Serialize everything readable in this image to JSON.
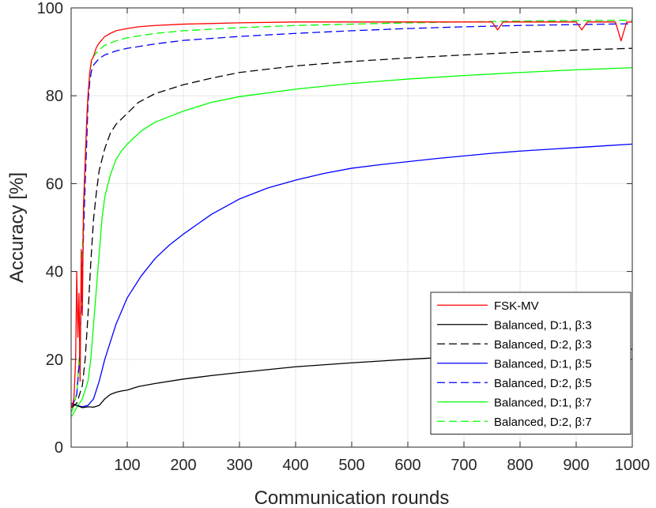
{
  "chart_data": {
    "type": "line",
    "title": "",
    "xlabel": "Communication rounds",
    "ylabel": "Accuracy [%]",
    "xlim": [
      0,
      1000
    ],
    "ylim": [
      0,
      100
    ],
    "xticks": [
      100,
      200,
      300,
      400,
      500,
      600,
      700,
      800,
      900,
      1000
    ],
    "yticks": [
      0,
      20,
      40,
      60,
      80,
      100
    ],
    "grid": true,
    "legend_position": "bottom-right",
    "series": [
      {
        "name": "FSK-MV",
        "color": "#ff0000",
        "dash": "solid",
        "points": [
          [
            1,
            9
          ],
          [
            5,
            11
          ],
          [
            8,
            20
          ],
          [
            10,
            40
          ],
          [
            12,
            25
          ],
          [
            14,
            35
          ],
          [
            16,
            15
          ],
          [
            18,
            45
          ],
          [
            20,
            30
          ],
          [
            22,
            55
          ],
          [
            25,
            65
          ],
          [
            28,
            75
          ],
          [
            30,
            80
          ],
          [
            33,
            85
          ],
          [
            36,
            88
          ],
          [
            40,
            89
          ],
          [
            45,
            91
          ],
          [
            50,
            92
          ],
          [
            60,
            93.5
          ],
          [
            70,
            94.2
          ],
          [
            80,
            94.8
          ],
          [
            100,
            95.3
          ],
          [
            120,
            95.7
          ],
          [
            150,
            96
          ],
          [
            200,
            96.3
          ],
          [
            300,
            96.6
          ],
          [
            400,
            96.8
          ],
          [
            500,
            96.8
          ],
          [
            600,
            96.8
          ],
          [
            700,
            96.8
          ],
          [
            750,
            96.8
          ],
          [
            760,
            95
          ],
          [
            770,
            96.8
          ],
          [
            800,
            96.8
          ],
          [
            850,
            96.8
          ],
          [
            900,
            96.8
          ],
          [
            910,
            95
          ],
          [
            920,
            96.8
          ],
          [
            950,
            96.8
          ],
          [
            970,
            96.8
          ],
          [
            980,
            92.5
          ],
          [
            990,
            96.8
          ],
          [
            1000,
            96.8
          ]
        ]
      },
      {
        "name": "Balanced, D:1, β:3",
        "color": "#000000",
        "dash": "solid",
        "points": [
          [
            1,
            10
          ],
          [
            10,
            9.5
          ],
          [
            20,
            9
          ],
          [
            30,
            9.2
          ],
          [
            40,
            9.1
          ],
          [
            50,
            9.5
          ],
          [
            60,
            11
          ],
          [
            70,
            12
          ],
          [
            80,
            12.5
          ],
          [
            90,
            12.8
          ],
          [
            100,
            13
          ],
          [
            120,
            13.8
          ],
          [
            150,
            14.5
          ],
          [
            200,
            15.5
          ],
          [
            250,
            16.3
          ],
          [
            300,
            17
          ],
          [
            400,
            18.3
          ],
          [
            500,
            19.2
          ],
          [
            600,
            20
          ],
          [
            700,
            20.7
          ],
          [
            800,
            21.3
          ],
          [
            900,
            21.8
          ],
          [
            1000,
            22.3
          ]
        ]
      },
      {
        "name": "Balanced, D:2, β:3",
        "color": "#000000",
        "dash": "dashed",
        "points": [
          [
            1,
            9
          ],
          [
            10,
            10
          ],
          [
            20,
            14
          ],
          [
            25,
            20
          ],
          [
            30,
            30
          ],
          [
            35,
            42
          ],
          [
            40,
            52
          ],
          [
            45,
            58
          ],
          [
            50,
            63
          ],
          [
            60,
            68
          ],
          [
            70,
            71.5
          ],
          [
            80,
            73.5
          ],
          [
            100,
            76
          ],
          [
            120,
            78.5
          ],
          [
            150,
            80.5
          ],
          [
            200,
            82.5
          ],
          [
            250,
            84
          ],
          [
            300,
            85.3
          ],
          [
            400,
            86.8
          ],
          [
            500,
            87.8
          ],
          [
            600,
            88.6
          ],
          [
            700,
            89.3
          ],
          [
            800,
            89.9
          ],
          [
            900,
            90.4
          ],
          [
            1000,
            90.8
          ]
        ]
      },
      {
        "name": "Balanced, D:1, β:5",
        "color": "#0000ff",
        "dash": "solid",
        "points": [
          [
            1,
            9.8
          ],
          [
            10,
            9.5
          ],
          [
            20,
            9.2
          ],
          [
            30,
            9.5
          ],
          [
            40,
            11
          ],
          [
            50,
            15
          ],
          [
            60,
            20
          ],
          [
            70,
            24
          ],
          [
            80,
            28
          ],
          [
            90,
            31
          ],
          [
            100,
            34
          ],
          [
            125,
            39
          ],
          [
            150,
            43
          ],
          [
            175,
            46
          ],
          [
            200,
            48.5
          ],
          [
            250,
            53
          ],
          [
            300,
            56.5
          ],
          [
            350,
            59
          ],
          [
            400,
            60.8
          ],
          [
            450,
            62.3
          ],
          [
            500,
            63.5
          ],
          [
            550,
            64.3
          ],
          [
            600,
            65
          ],
          [
            650,
            65.7
          ],
          [
            700,
            66.3
          ],
          [
            750,
            66.9
          ],
          [
            800,
            67.4
          ],
          [
            850,
            67.8
          ],
          [
            900,
            68.2
          ],
          [
            950,
            68.6
          ],
          [
            1000,
            69
          ]
        ]
      },
      {
        "name": "Balanced, D:2, β:5",
        "color": "#0000ff",
        "dash": "dashed",
        "points": [
          [
            1,
            9
          ],
          [
            10,
            12
          ],
          [
            15,
            20
          ],
          [
            20,
            40
          ],
          [
            25,
            60
          ],
          [
            28,
            70
          ],
          [
            30,
            78
          ],
          [
            33,
            83
          ],
          [
            36,
            85.5
          ],
          [
            40,
            87
          ],
          [
            50,
            88.5
          ],
          [
            60,
            89.3
          ],
          [
            80,
            90.2
          ],
          [
            100,
            90.8
          ],
          [
            150,
            91.8
          ],
          [
            200,
            92.6
          ],
          [
            300,
            93.5
          ],
          [
            400,
            94.2
          ],
          [
            500,
            94.8
          ],
          [
            600,
            95.3
          ],
          [
            700,
            95.7
          ],
          [
            800,
            96
          ],
          [
            900,
            96.2
          ],
          [
            1000,
            96.4
          ]
        ]
      },
      {
        "name": "Balanced, D:1, β:7",
        "color": "#00ff00",
        "dash": "solid",
        "points": [
          [
            1,
            7
          ],
          [
            10,
            9
          ],
          [
            20,
            11
          ],
          [
            30,
            15
          ],
          [
            35,
            20
          ],
          [
            40,
            28
          ],
          [
            45,
            36
          ],
          [
            50,
            44
          ],
          [
            55,
            52
          ],
          [
            60,
            57
          ],
          [
            70,
            62
          ],
          [
            80,
            65.5
          ],
          [
            90,
            67.5
          ],
          [
            100,
            69
          ],
          [
            125,
            72
          ],
          [
            150,
            74
          ],
          [
            200,
            76.5
          ],
          [
            250,
            78.5
          ],
          [
            300,
            79.8
          ],
          [
            400,
            81.5
          ],
          [
            500,
            82.8
          ],
          [
            600,
            83.8
          ],
          [
            700,
            84.6
          ],
          [
            800,
            85.3
          ],
          [
            900,
            85.9
          ],
          [
            1000,
            86.4
          ]
        ]
      },
      {
        "name": "Balanced, D:2, β:7",
        "color": "#00ff00",
        "dash": "dashed",
        "points": [
          [
            1,
            8
          ],
          [
            10,
            12
          ],
          [
            15,
            22
          ],
          [
            20,
            45
          ],
          [
            25,
            65
          ],
          [
            28,
            75
          ],
          [
            30,
            80
          ],
          [
            33,
            85
          ],
          [
            36,
            87.5
          ],
          [
            40,
            89
          ],
          [
            50,
            90.5
          ],
          [
            60,
            91.5
          ],
          [
            80,
            92.5
          ],
          [
            100,
            93.2
          ],
          [
            150,
            94.2
          ],
          [
            200,
            94.8
          ],
          [
            300,
            95.5
          ],
          [
            400,
            96
          ],
          [
            500,
            96.3
          ],
          [
            600,
            96.6
          ],
          [
            700,
            96.8
          ],
          [
            800,
            97
          ],
          [
            900,
            97.1
          ],
          [
            1000,
            97.2
          ]
        ]
      }
    ]
  }
}
